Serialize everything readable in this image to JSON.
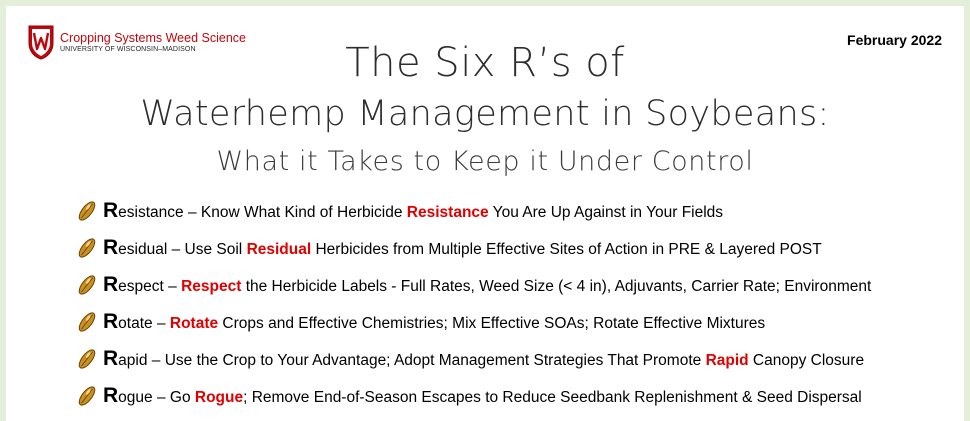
{
  "header": {
    "logo_title": "Cropping Systems Weed Science",
    "logo_subtitle": "UNIVERSITY OF WISCONSIN–MADISON",
    "date": "February 2022"
  },
  "title": {
    "line1": "The Six R’s of",
    "line2": "Waterhemp Management in Soybeans:",
    "line3": "What it Takes to Keep it Under Control"
  },
  "items": [
    {
      "letter": "R",
      "rest": "esistance",
      "pre": " – Know What Kind of Herbicide ",
      "highlight": "Resistance",
      "post": " You Are Up Against in Your Fields"
    },
    {
      "letter": "R",
      "rest": "esidual",
      "pre": " – Use Soil ",
      "highlight": "Residual",
      "post": " Herbicides from Multiple Effective Sites of Action in PRE & Layered POST"
    },
    {
      "letter": "R",
      "rest": "espect",
      "pre": " – ",
      "highlight": "Respect",
      "post": " the Herbicide Labels - Full Rates, Weed Size (< 4 in), Adjuvants, Carrier Rate; Environment"
    },
    {
      "letter": "R",
      "rest": "otate",
      "pre": " – ",
      "highlight": "Rotate",
      "post": " Crops and Effective Chemistries; Mix Effective SOAs; Rotate Effective Mixtures"
    },
    {
      "letter": "R",
      "rest": "apid",
      "pre": " – Use the Crop to Your Advantage; Adopt Management Strategies That Promote ",
      "highlight": "Rapid",
      "post": " Canopy Closure"
    },
    {
      "letter": "R",
      "rest": "ogue",
      "pre": " – Go ",
      "highlight": "Rogue",
      "post": "; Remove End-of-Season Escapes to Reduce Seedbank Replenishment & Seed Dispersal"
    }
  ],
  "colors": {
    "accent_red": "#e00000",
    "brand_red": "#c5050c",
    "frame_green": "#e4efd9"
  },
  "icons": {
    "bullet": "wheat-grain-icon",
    "logo": "uw-crest-icon"
  }
}
